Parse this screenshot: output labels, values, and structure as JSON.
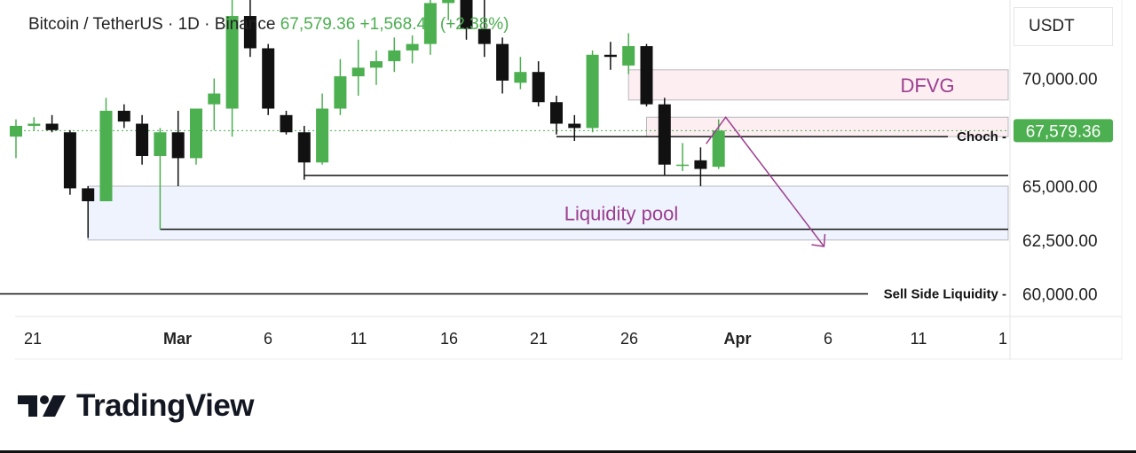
{
  "header": {
    "symbol": "Bitcoin / TetherUS · 1D · Binance",
    "price": "67,579.36",
    "change": "+1,568.43 (+2.38%)"
  },
  "currency": "USDT",
  "brand": {
    "name": "TradingView"
  },
  "colors": {
    "up": "#4caf50",
    "down": "#111111",
    "price_badge": "#4caf50",
    "annotation": "#9c3f8f"
  },
  "chart_data": {
    "type": "candlestick",
    "y_axis": {
      "ticks": [
        70000,
        65000,
        62500,
        60000
      ],
      "tick_labels": [
        "70,000.00",
        "65,000.00",
        "62,500.00",
        "60,000.00"
      ],
      "range": [
        58000,
        75000
      ]
    },
    "x_axis": {
      "tick_labels": [
        "21",
        "Mar",
        "6",
        "11",
        "16",
        "21",
        "26",
        "Apr",
        "6",
        "11",
        "1"
      ]
    },
    "current_price": {
      "value": 67579.36,
      "label": "67,579.36"
    },
    "candles": [
      {
        "date": "Feb 20",
        "o": 67300,
        "h": 68100,
        "l": 66300,
        "c": 67800
      },
      {
        "date": "Feb 21",
        "o": 67800,
        "h": 68200,
        "l": 67600,
        "c": 67900
      },
      {
        "date": "Feb 22",
        "o": 67900,
        "h": 68300,
        "l": 67500,
        "c": 67600
      },
      {
        "date": "Feb 23",
        "o": 67500,
        "h": 67600,
        "l": 64600,
        "c": 64900
      },
      {
        "date": "Feb 24",
        "o": 64900,
        "h": 65000,
        "l": 62600,
        "c": 64300
      },
      {
        "date": "Feb 25",
        "o": 64300,
        "h": 69100,
        "l": 64300,
        "c": 68500
      },
      {
        "date": "Feb 26",
        "o": 68500,
        "h": 68800,
        "l": 67700,
        "c": 68000
      },
      {
        "date": "Feb 27",
        "o": 67900,
        "h": 68300,
        "l": 66000,
        "c": 66400
      },
      {
        "date": "Feb 28",
        "o": 66400,
        "h": 67700,
        "l": 63000,
        "c": 67500
      },
      {
        "date": "Mar 1",
        "o": 67500,
        "h": 68500,
        "l": 65000,
        "c": 66300
      },
      {
        "date": "Mar 2",
        "o": 66300,
        "h": 68600,
        "l": 66000,
        "c": 68600
      },
      {
        "date": "Mar 3",
        "o": 68800,
        "h": 70000,
        "l": 67600,
        "c": 69300
      },
      {
        "date": "Mar 4",
        "o": 68600,
        "h": 73900,
        "l": 67300,
        "c": 72900
      },
      {
        "date": "Mar 5",
        "o": 72900,
        "h": 73800,
        "l": 71000,
        "c": 71400
      },
      {
        "date": "Mar 6",
        "o": 71400,
        "h": 71600,
        "l": 68300,
        "c": 68600
      },
      {
        "date": "Mar 7",
        "o": 68300,
        "h": 68500,
        "l": 67400,
        "c": 67500
      },
      {
        "date": "Mar 8",
        "o": 67500,
        "h": 67800,
        "l": 65300,
        "c": 66100
      },
      {
        "date": "Mar 9",
        "o": 66100,
        "h": 69300,
        "l": 66000,
        "c": 68600
      },
      {
        "date": "Mar 10",
        "o": 68600,
        "h": 70900,
        "l": 68300,
        "c": 70100
      },
      {
        "date": "Mar 11",
        "o": 70100,
        "h": 71800,
        "l": 69200,
        "c": 70500
      },
      {
        "date": "Mar 12",
        "o": 70500,
        "h": 71300,
        "l": 69700,
        "c": 70800
      },
      {
        "date": "Mar 13",
        "o": 70800,
        "h": 71900,
        "l": 70300,
        "c": 71300
      },
      {
        "date": "Mar 14",
        "o": 71300,
        "h": 72000,
        "l": 70700,
        "c": 71600
      },
      {
        "date": "Mar 15",
        "o": 71600,
        "h": 74000,
        "l": 71100,
        "c": 73500
      },
      {
        "date": "Mar 16",
        "o": 73500,
        "h": 74600,
        "l": 72700,
        "c": 74300
      },
      {
        "date": "Mar 17",
        "o": 74300,
        "h": 74700,
        "l": 71800,
        "c": 72300
      },
      {
        "date": "Mar 18",
        "o": 72300,
        "h": 74300,
        "l": 71000,
        "c": 71600
      },
      {
        "date": "Mar 19",
        "o": 71600,
        "h": 71900,
        "l": 69300,
        "c": 69900
      },
      {
        "date": "Mar 20",
        "o": 69800,
        "h": 71000,
        "l": 69500,
        "c": 70300
      },
      {
        "date": "Mar 21",
        "o": 70300,
        "h": 70800,
        "l": 68700,
        "c": 68900
      },
      {
        "date": "Mar 22",
        "o": 68900,
        "h": 69200,
        "l": 67400,
        "c": 67900
      },
      {
        "date": "Mar 23",
        "o": 67900,
        "h": 68300,
        "l": 67100,
        "c": 67700
      },
      {
        "date": "Mar 24",
        "o": 67700,
        "h": 71300,
        "l": 67500,
        "c": 71100
      },
      {
        "date": "Mar 25",
        "o": 71100,
        "h": 71700,
        "l": 70400,
        "c": 71000
      },
      {
        "date": "Mar 26",
        "o": 70600,
        "h": 72100,
        "l": 70200,
        "c": 71500
      },
      {
        "date": "Mar 27",
        "o": 71500,
        "h": 71600,
        "l": 68700,
        "c": 68800
      },
      {
        "date": "Mar 28",
        "o": 68800,
        "h": 69100,
        "l": 65500,
        "c": 66000
      },
      {
        "date": "Mar 29",
        "o": 66000,
        "h": 67000,
        "l": 65700,
        "c": 66000
      },
      {
        "date": "Mar 30",
        "o": 66200,
        "h": 66800,
        "l": 65000,
        "c": 65800
      },
      {
        "date": "Mar 31",
        "o": 65900,
        "h": 68100,
        "l": 65800,
        "c": 67579.36
      }
    ],
    "zones": [
      {
        "name": "DFVG",
        "label": "DFVG",
        "from_date": "Mar 26",
        "top": 70400,
        "bottom": 69000
      },
      {
        "name": "fvg-lower",
        "from_date": "Mar 27",
        "top": 68200,
        "bottom": 67300
      },
      {
        "name": "Liquidity pool",
        "label": "Liquidity pool",
        "from_date": "Feb 24",
        "top": 65000,
        "bottom": 62500
      }
    ],
    "levels": [
      {
        "name": "Choch",
        "label": "Choch -",
        "value": 67300,
        "from_date": "Mar 22"
      },
      {
        "name": "support-low",
        "value": 65500,
        "from_date": "Mar 8"
      },
      {
        "name": "pool-low",
        "value": 63000,
        "from_date": "Feb 28"
      },
      {
        "name": "Sell Side Liquidity",
        "label": "Sell Side Liquidity -",
        "value": 60000,
        "from_date": "Feb 18"
      }
    ],
    "projection": {
      "from": {
        "date": "Mar 31",
        "price": 68200
      },
      "to": {
        "date": "Apr 5",
        "price": 62200
      }
    }
  }
}
